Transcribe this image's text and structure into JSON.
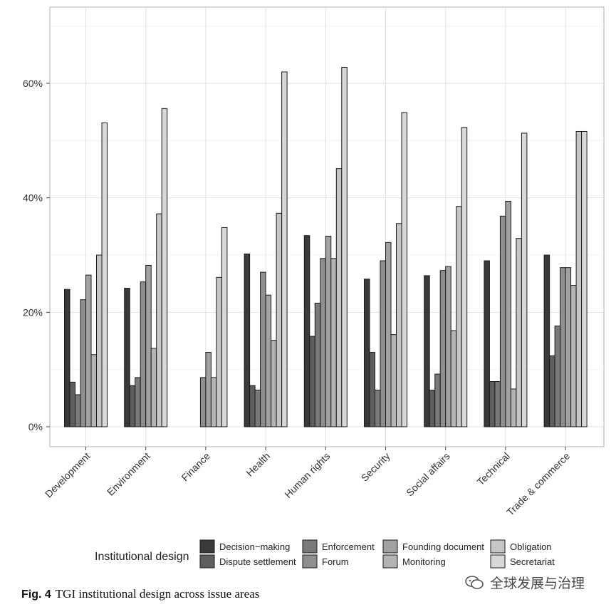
{
  "chart_data": {
    "type": "bar",
    "categories": [
      "Development",
      "Environment",
      "Finance",
      "Health",
      "Human rights",
      "Security",
      "Social affairs",
      "Technical",
      "Trade & commerce"
    ],
    "series": [
      {
        "name": "Decision−making",
        "color": "#3a3a3a",
        "values": [
          24.0,
          24.2,
          0.0,
          30.2,
          33.4,
          25.8,
          26.4,
          29.0,
          30.0
        ]
      },
      {
        "name": "Dispute settlement",
        "color": "#5e5e5e",
        "values": [
          7.8,
          7.2,
          0.0,
          7.2,
          15.8,
          13.0,
          6.4,
          7.9,
          12.4
        ]
      },
      {
        "name": "Enforcement",
        "color": "#7a7a7a",
        "values": [
          5.6,
          8.6,
          0.0,
          6.4,
          21.6,
          6.4,
          9.2,
          7.9,
          17.6
        ]
      },
      {
        "name": "Forum",
        "color": "#8f8f8f",
        "values": [
          22.2,
          25.3,
          8.6,
          27.0,
          29.4,
          29.0,
          27.3,
          36.8,
          27.8
        ]
      },
      {
        "name": "Founding document",
        "color": "#a2a2a2",
        "values": [
          26.5,
          28.2,
          13.0,
          23.0,
          33.3,
          32.2,
          28.0,
          39.4,
          27.8
        ]
      },
      {
        "name": "Monitoring",
        "color": "#b4b4b4",
        "values": [
          12.6,
          13.7,
          8.6,
          15.1,
          29.4,
          16.1,
          16.8,
          6.6,
          24.7
        ]
      },
      {
        "name": "Obligation",
        "color": "#c6c6c6",
        "values": [
          30.0,
          37.2,
          26.1,
          37.3,
          45.1,
          35.5,
          38.5,
          32.9,
          51.6
        ]
      },
      {
        "name": "Secretariat",
        "color": "#d8d8d8",
        "values": [
          53.1,
          55.6,
          34.8,
          62.0,
          62.8,
          54.9,
          52.3,
          51.3,
          51.6
        ]
      }
    ],
    "ylim": [
      0,
      70
    ],
    "yticks": [
      0,
      20,
      40,
      60
    ],
    "ytick_labels": [
      "0%",
      "20%",
      "40%",
      "60%"
    ],
    "grid": true,
    "legend": {
      "title": "Institutional design",
      "position": "bottom"
    }
  },
  "caption": {
    "label": "Fig. 4",
    "text": "TGI institutional design across issue areas"
  },
  "watermark": {
    "text": "全球发展与治理"
  }
}
